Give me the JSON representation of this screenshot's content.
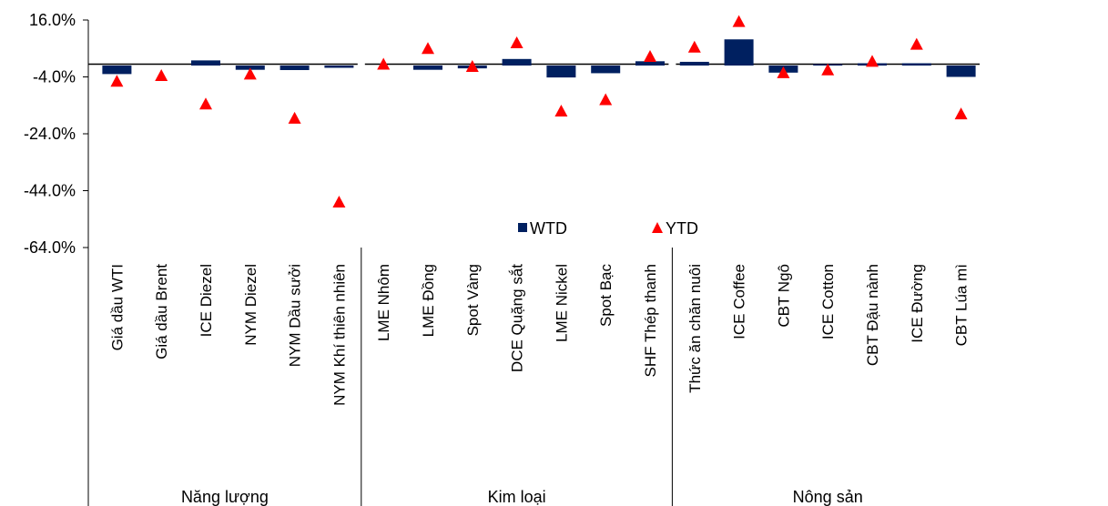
{
  "chart_data": {
    "type": "bar",
    "ylim": [
      -64,
      16
    ],
    "yticks": [
      "16.0%",
      "-4.0%",
      "-24.0%",
      "-44.0%",
      "-64.0%"
    ],
    "ytick_values": [
      16,
      -4,
      -24,
      -44,
      -64
    ],
    "legend_position": "center-bottom-plot",
    "groups": [
      {
        "name": "Năng lượng",
        "categories": [
          "Giá dầu WTI",
          "Giá dầu Brent",
          "ICE Diezel",
          "NYM Diezel",
          "NYM Dầu sưởi",
          "NYM Khí thiên nhiên"
        ],
        "wtd": [
          -3.0,
          0.0,
          1.8,
          -1.5,
          -1.6,
          -0.8
        ],
        "ytd": [
          -5.5,
          -3.5,
          -13.5,
          -3.0,
          -18.5,
          -48.0
        ]
      },
      {
        "name": "Kim loại",
        "categories": [
          "LME Nhôm",
          "LME Đồng",
          "Spot Vàng",
          "DCE Quặng sắt",
          "LME Nickel",
          "Spot Bạc",
          "SHF Thép thanh"
        ],
        "wtd": [
          0.0,
          -1.5,
          -1.0,
          2.3,
          -4.2,
          -2.7,
          1.5
        ],
        "ytd": [
          0.5,
          6.0,
          -0.3,
          8.0,
          -16.0,
          -12.0,
          3.2
        ]
      },
      {
        "name": "Nông sản",
        "categories": [
          "Thức ăn chăn nuôi",
          "ICE Coffee",
          "CBT Ngô",
          "ICE Cotton",
          "CBT Đậu nành",
          "ICE Đường",
          "CBT Lúa mì"
        ],
        "wtd": [
          1.3,
          9.2,
          -2.5,
          0.5,
          0.8,
          0.8,
          -4.0
        ],
        "ytd": [
          6.5,
          15.5,
          -2.5,
          -1.5,
          1.5,
          7.5,
          -17.0
        ]
      }
    ],
    "series": [
      {
        "name": "WTD",
        "color": "#002060",
        "marker": "square"
      },
      {
        "name": "YTD",
        "color": "#ff0000",
        "marker": "triangle"
      }
    ]
  }
}
